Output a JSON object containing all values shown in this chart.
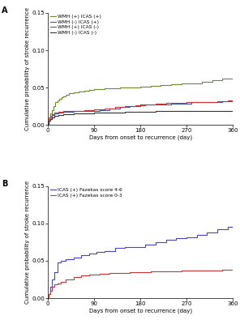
{
  "panel_a": {
    "title_label": "A",
    "ylabel": "Cumulative probability of stroke recurrence",
    "xlabel": "Days from onset to recurrence (day)",
    "ylim": [
      0,
      0.15
    ],
    "xlim": [
      0,
      360
    ],
    "xticks": [
      0,
      90,
      180,
      270,
      360
    ],
    "yticks": [
      0.0,
      0.05,
      0.1,
      0.15
    ],
    "series": [
      {
        "label": "WMH (+) ICAS (+)",
        "color": "#6b8c2a",
        "x": [
          0,
          2,
          5,
          8,
          10,
          14,
          18,
          22,
          26,
          30,
          35,
          40,
          50,
          60,
          70,
          80,
          90,
          100,
          110,
          120,
          130,
          140,
          150,
          160,
          170,
          180,
          200,
          220,
          240,
          260,
          280,
          300,
          320,
          340,
          360
        ],
        "y": [
          0.0,
          0.01,
          0.015,
          0.02,
          0.025,
          0.03,
          0.033,
          0.035,
          0.037,
          0.038,
          0.04,
          0.042,
          0.044,
          0.045,
          0.046,
          0.047,
          0.048,
          0.048,
          0.049,
          0.049,
          0.049,
          0.05,
          0.05,
          0.05,
          0.05,
          0.051,
          0.052,
          0.053,
          0.054,
          0.055,
          0.056,
          0.058,
          0.06,
          0.062,
          0.063
        ]
      },
      {
        "label": "WMH (-) ICAS (+)",
        "color": "#3355bb",
        "x": [
          0,
          2,
          5,
          8,
          12,
          20,
          30,
          50,
          70,
          90,
          100,
          120,
          140,
          160,
          180,
          200,
          220,
          240,
          260,
          280,
          300,
          320,
          340,
          360
        ],
        "y": [
          0.0,
          0.005,
          0.01,
          0.013,
          0.015,
          0.016,
          0.017,
          0.018,
          0.018,
          0.019,
          0.02,
          0.022,
          0.024,
          0.025,
          0.027,
          0.027,
          0.027,
          0.028,
          0.028,
          0.03,
          0.03,
          0.031,
          0.032,
          0.033
        ]
      },
      {
        "label": "WMH (+) ICAS (-)",
        "color": "#cc3333",
        "x": [
          0,
          2,
          5,
          8,
          12,
          20,
          30,
          50,
          70,
          90,
          110,
          130,
          150,
          170,
          190,
          210,
          230,
          250,
          270,
          290,
          310,
          330,
          350,
          360
        ],
        "y": [
          0.0,
          0.008,
          0.012,
          0.014,
          0.016,
          0.017,
          0.018,
          0.019,
          0.02,
          0.021,
          0.022,
          0.024,
          0.025,
          0.026,
          0.027,
          0.028,
          0.029,
          0.029,
          0.03,
          0.03,
          0.031,
          0.032,
          0.033,
          0.033
        ]
      },
      {
        "label": "WMH (-) ICAS (-)",
        "color": "#333333",
        "x": [
          0,
          2,
          5,
          8,
          12,
          20,
          30,
          50,
          70,
          90,
          120,
          150,
          180,
          210,
          240,
          270,
          300,
          330,
          360
        ],
        "y": [
          0.0,
          0.005,
          0.008,
          0.01,
          0.012,
          0.013,
          0.014,
          0.015,
          0.015,
          0.016,
          0.016,
          0.017,
          0.017,
          0.018,
          0.018,
          0.018,
          0.018,
          0.018,
          0.018
        ]
      }
    ]
  },
  "panel_b": {
    "title_label": "B",
    "ylabel": "Cumulative probability of stroke recurrence",
    "xlabel": "Days from onset to recurrence (day)",
    "ylim": [
      0,
      0.15
    ],
    "xlim": [
      0,
      360
    ],
    "xticks": [
      0,
      90,
      180,
      270,
      360
    ],
    "yticks": [
      0.0,
      0.05,
      0.1,
      0.15
    ],
    "series": [
      {
        "label": "ICAS (+) Fazekas score 4-6",
        "color": "#4444cc",
        "x": [
          0,
          2,
          5,
          8,
          12,
          18,
          25,
          35,
          50,
          65,
          80,
          95,
          110,
          130,
          150,
          170,
          190,
          210,
          230,
          250,
          270,
          290,
          310,
          330,
          350,
          360
        ],
        "y": [
          0.0,
          0.005,
          0.015,
          0.025,
          0.035,
          0.048,
          0.05,
          0.052,
          0.054,
          0.058,
          0.06,
          0.062,
          0.063,
          0.067,
          0.068,
          0.068,
          0.072,
          0.075,
          0.078,
          0.08,
          0.082,
          0.085,
          0.088,
          0.092,
          0.096,
          0.098
        ]
      },
      {
        "label": "ICAS (+) Fazekas score 0-3",
        "color": "#cc3333",
        "x": [
          0,
          2,
          5,
          8,
          12,
          18,
          25,
          35,
          50,
          65,
          80,
          100,
          120,
          140,
          160,
          180,
          200,
          220,
          240,
          260,
          280,
          300,
          320,
          340,
          360
        ],
        "y": [
          0.0,
          0.005,
          0.01,
          0.015,
          0.018,
          0.02,
          0.022,
          0.025,
          0.028,
          0.03,
          0.032,
          0.033,
          0.034,
          0.034,
          0.035,
          0.035,
          0.036,
          0.036,
          0.036,
          0.037,
          0.037,
          0.037,
          0.037,
          0.038,
          0.038
        ]
      }
    ]
  },
  "figure_bg": "#ffffff",
  "axes_bg": "#ffffff"
}
